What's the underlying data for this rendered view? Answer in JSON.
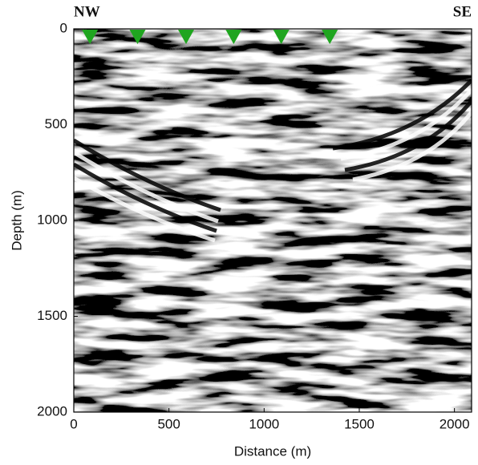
{
  "chart_data": {
    "type": "scatter",
    "annotations": [
      "NW",
      "SE"
    ],
    "x_label": "Distance (m)",
    "y_label": "Depth (m)",
    "series": [
      {
        "color": "#1fa51f",
        "marker": "triangle-down",
        "x": [
          85,
          335,
          590,
          840,
          1090,
          1345
        ],
        "values": [
          0,
          0,
          0,
          0,
          0,
          0
        ]
      }
    ],
    "xlim": [
      0,
      2090
    ],
    "ylim": [
      0,
      2000
    ],
    "y_inverted": true,
    "xticks": [
      0,
      500,
      1000,
      1500,
      2000
    ],
    "yticks": [
      0,
      500,
      1000,
      1500,
      2000
    ]
  }
}
